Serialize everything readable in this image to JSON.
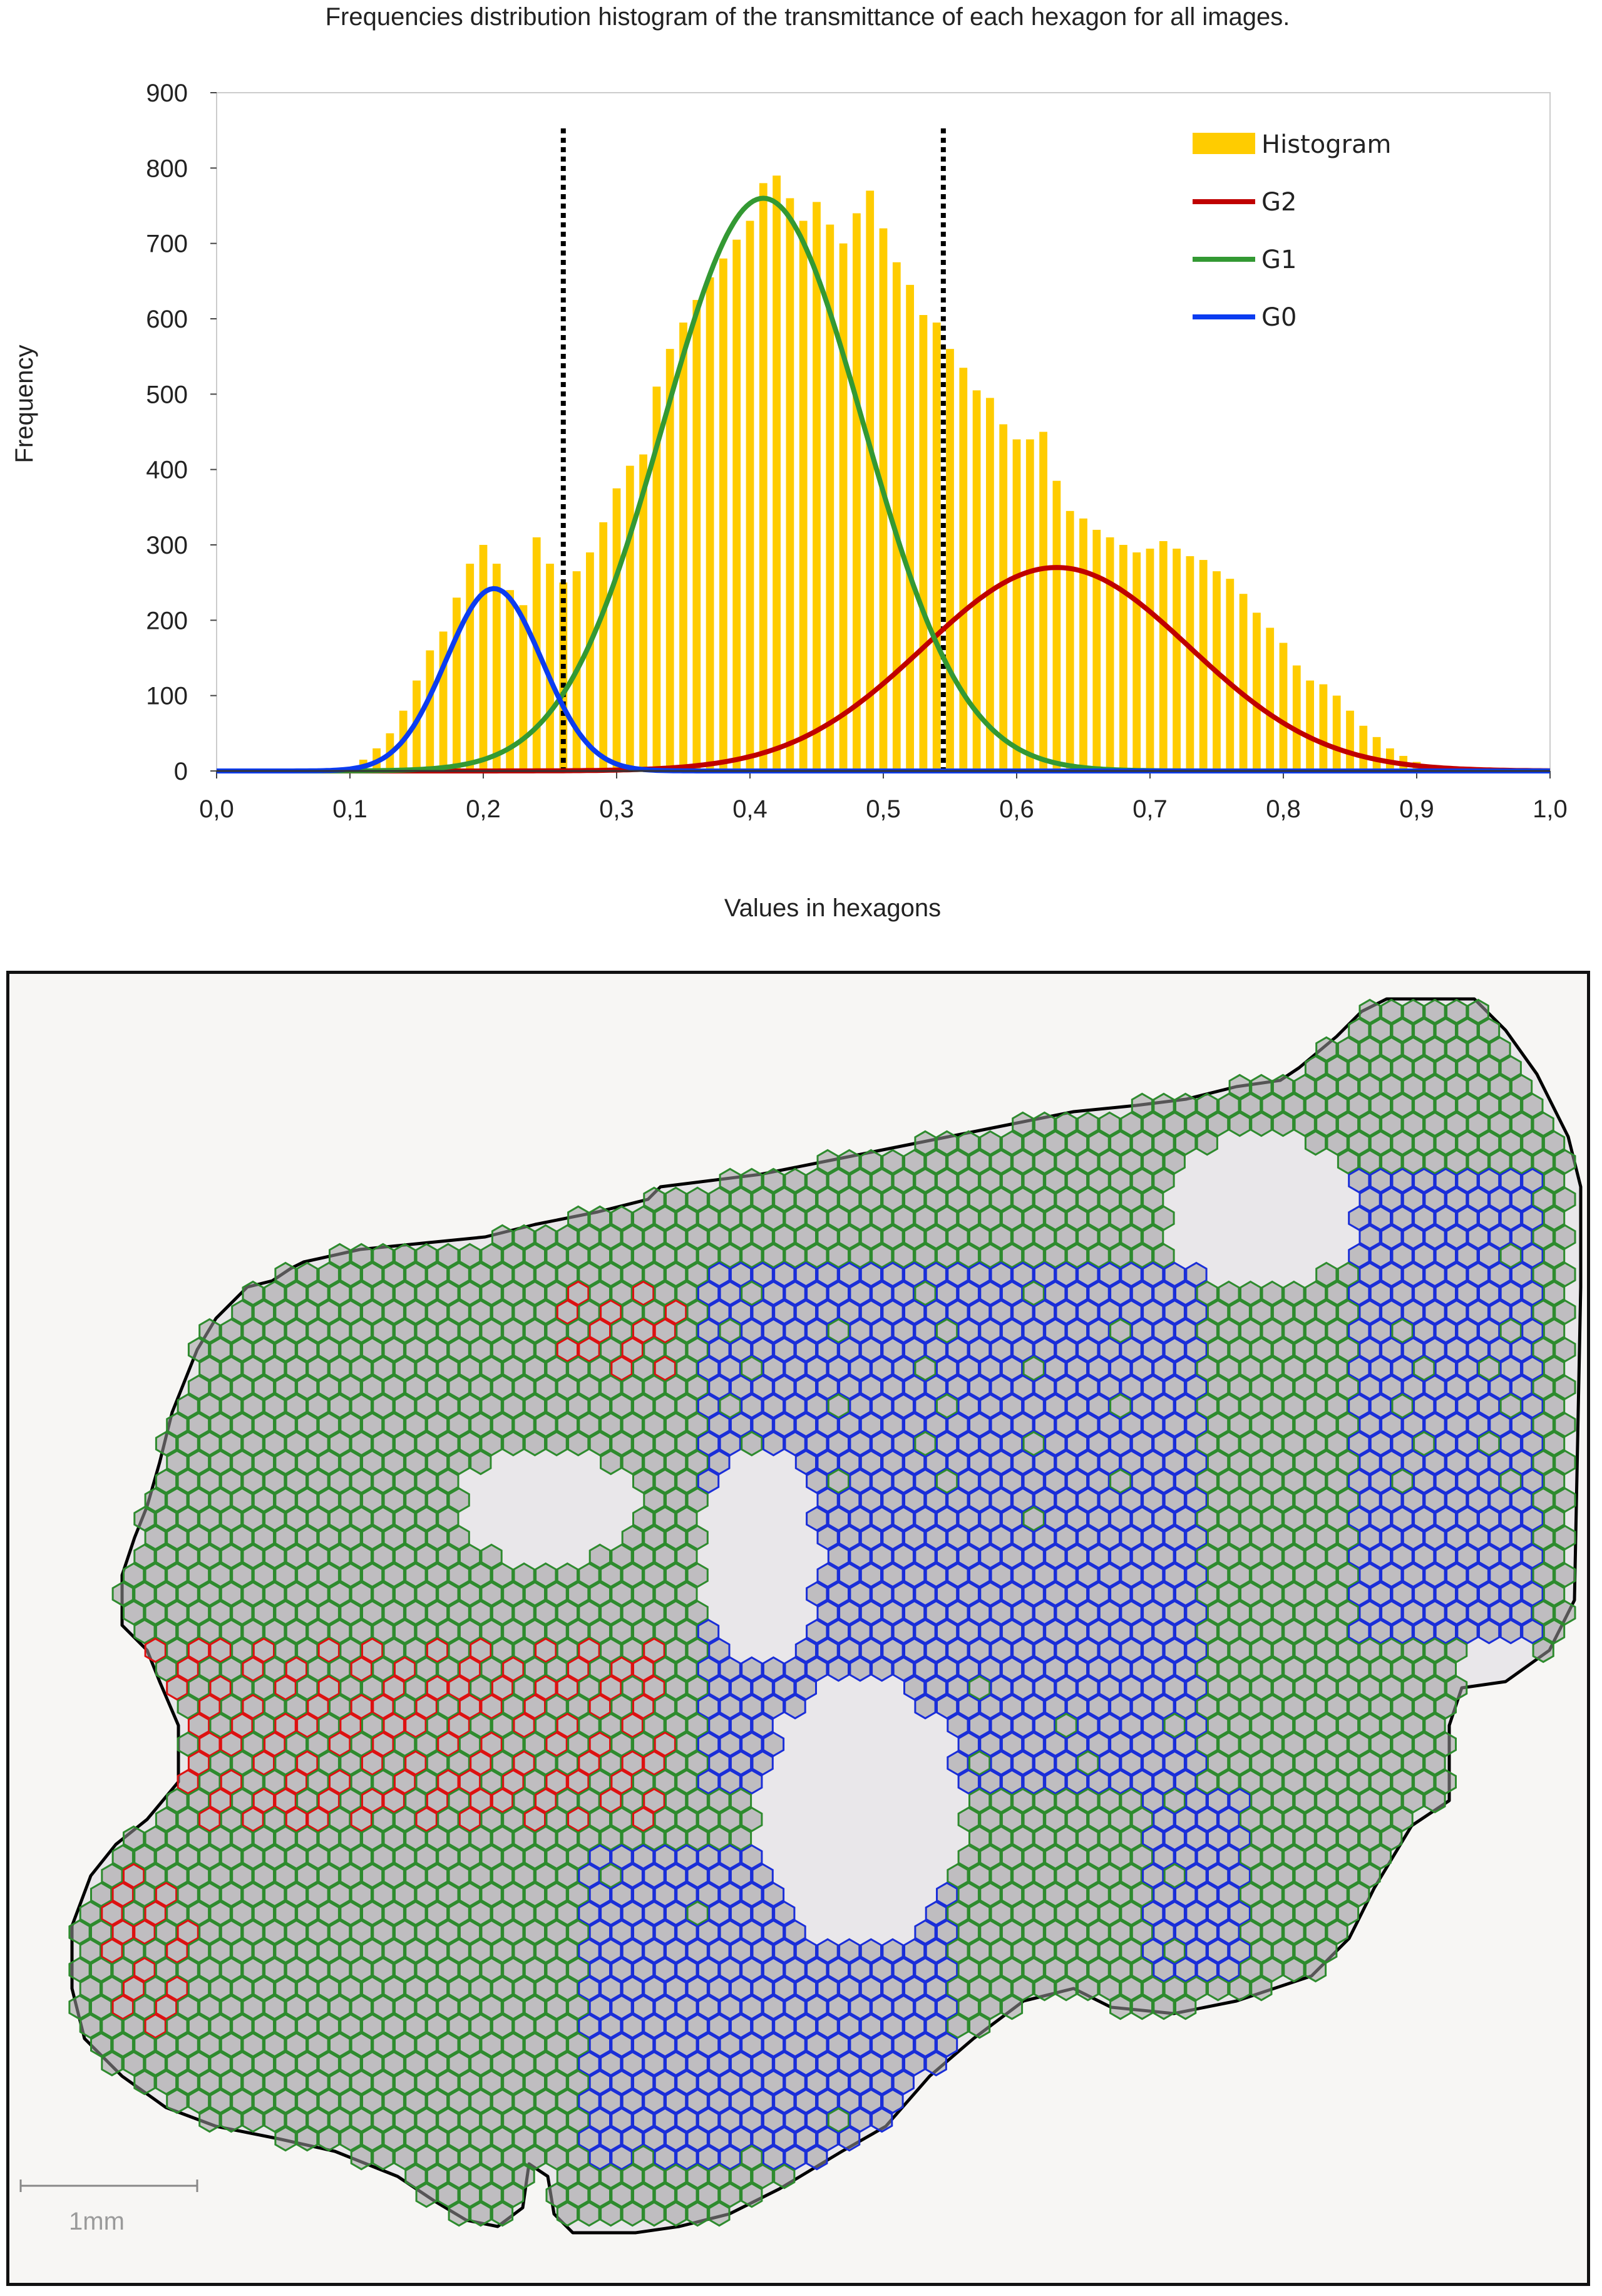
{
  "chart_data": {
    "type": "bar",
    "title": "Frequencies distribution histogram of the transmittance of each hexagon for all images.",
    "xlabel": "Values in hexagons",
    "ylabel": "Frequency",
    "xlim": [
      0.0,
      1.0
    ],
    "ylim": [
      0,
      900
    ],
    "xticks": [
      "0,0",
      "0,1",
      "0,2",
      "0,3",
      "0,4",
      "0,5",
      "0,6",
      "0,7",
      "0,8",
      "0,9",
      "1,0"
    ],
    "yticks": [
      "0",
      "100",
      "200",
      "300",
      "400",
      "500",
      "600",
      "700",
      "800",
      "900"
    ],
    "legend_position": "top-right",
    "histogram": {
      "name": "Histogram",
      "color": "#ffcc00",
      "bin_width": 0.01,
      "x": [
        0.1,
        0.11,
        0.12,
        0.13,
        0.14,
        0.15,
        0.16,
        0.17,
        0.18,
        0.19,
        0.2,
        0.21,
        0.22,
        0.23,
        0.24,
        0.25,
        0.26,
        0.27,
        0.28,
        0.29,
        0.3,
        0.31,
        0.32,
        0.33,
        0.34,
        0.35,
        0.36,
        0.37,
        0.38,
        0.39,
        0.4,
        0.41,
        0.42,
        0.43,
        0.44,
        0.45,
        0.46,
        0.47,
        0.48,
        0.49,
        0.5,
        0.51,
        0.52,
        0.53,
        0.54,
        0.55,
        0.56,
        0.57,
        0.58,
        0.59,
        0.6,
        0.61,
        0.62,
        0.63,
        0.64,
        0.65,
        0.66,
        0.67,
        0.68,
        0.69,
        0.7,
        0.71,
        0.72,
        0.73,
        0.74,
        0.75,
        0.76,
        0.77,
        0.78,
        0.79,
        0.8,
        0.81,
        0.82,
        0.83,
        0.84,
        0.85,
        0.86,
        0.87,
        0.88,
        0.89,
        0.9,
        0.91,
        0.92,
        0.93,
        0.94,
        0.95
      ],
      "values": [
        5,
        15,
        30,
        50,
        80,
        120,
        160,
        185,
        230,
        275,
        300,
        275,
        240,
        220,
        310,
        275,
        250,
        265,
        290,
        330,
        375,
        405,
        420,
        510,
        560,
        595,
        625,
        655,
        680,
        705,
        730,
        780,
        790,
        760,
        730,
        755,
        725,
        700,
        740,
        770,
        720,
        675,
        645,
        605,
        595,
        560,
        535,
        505,
        495,
        460,
        440,
        440,
        450,
        385,
        345,
        335,
        320,
        310,
        300,
        290,
        295,
        305,
        295,
        285,
        280,
        265,
        255,
        235,
        210,
        190,
        170,
        140,
        120,
        115,
        100,
        80,
        60,
        45,
        30,
        20,
        12,
        8,
        5,
        3,
        2,
        1
      ]
    },
    "series": [
      {
        "name": "G2",
        "color": "#c00000",
        "type": "gaussian",
        "mean": 0.63,
        "sd": 0.1,
        "amplitude": 270
      },
      {
        "name": "G1",
        "color": "#339933",
        "type": "gaussian",
        "mean": 0.41,
        "sd": 0.075,
        "amplitude": 760
      },
      {
        "name": "G0",
        "color": "#0b3cf0",
        "type": "gaussian",
        "mean": 0.208,
        "sd": 0.036,
        "amplitude": 242
      }
    ],
    "thresholds": [
      0.26,
      0.545
    ]
  },
  "image_panel": {
    "scale_bar_label": "1mm",
    "hexagon_classes": [
      {
        "name": "G2",
        "color": "#dd1111"
      },
      {
        "name": "G1",
        "color": "#2e8b2e"
      },
      {
        "name": "G0",
        "color": "#1a2ed8"
      }
    ]
  }
}
